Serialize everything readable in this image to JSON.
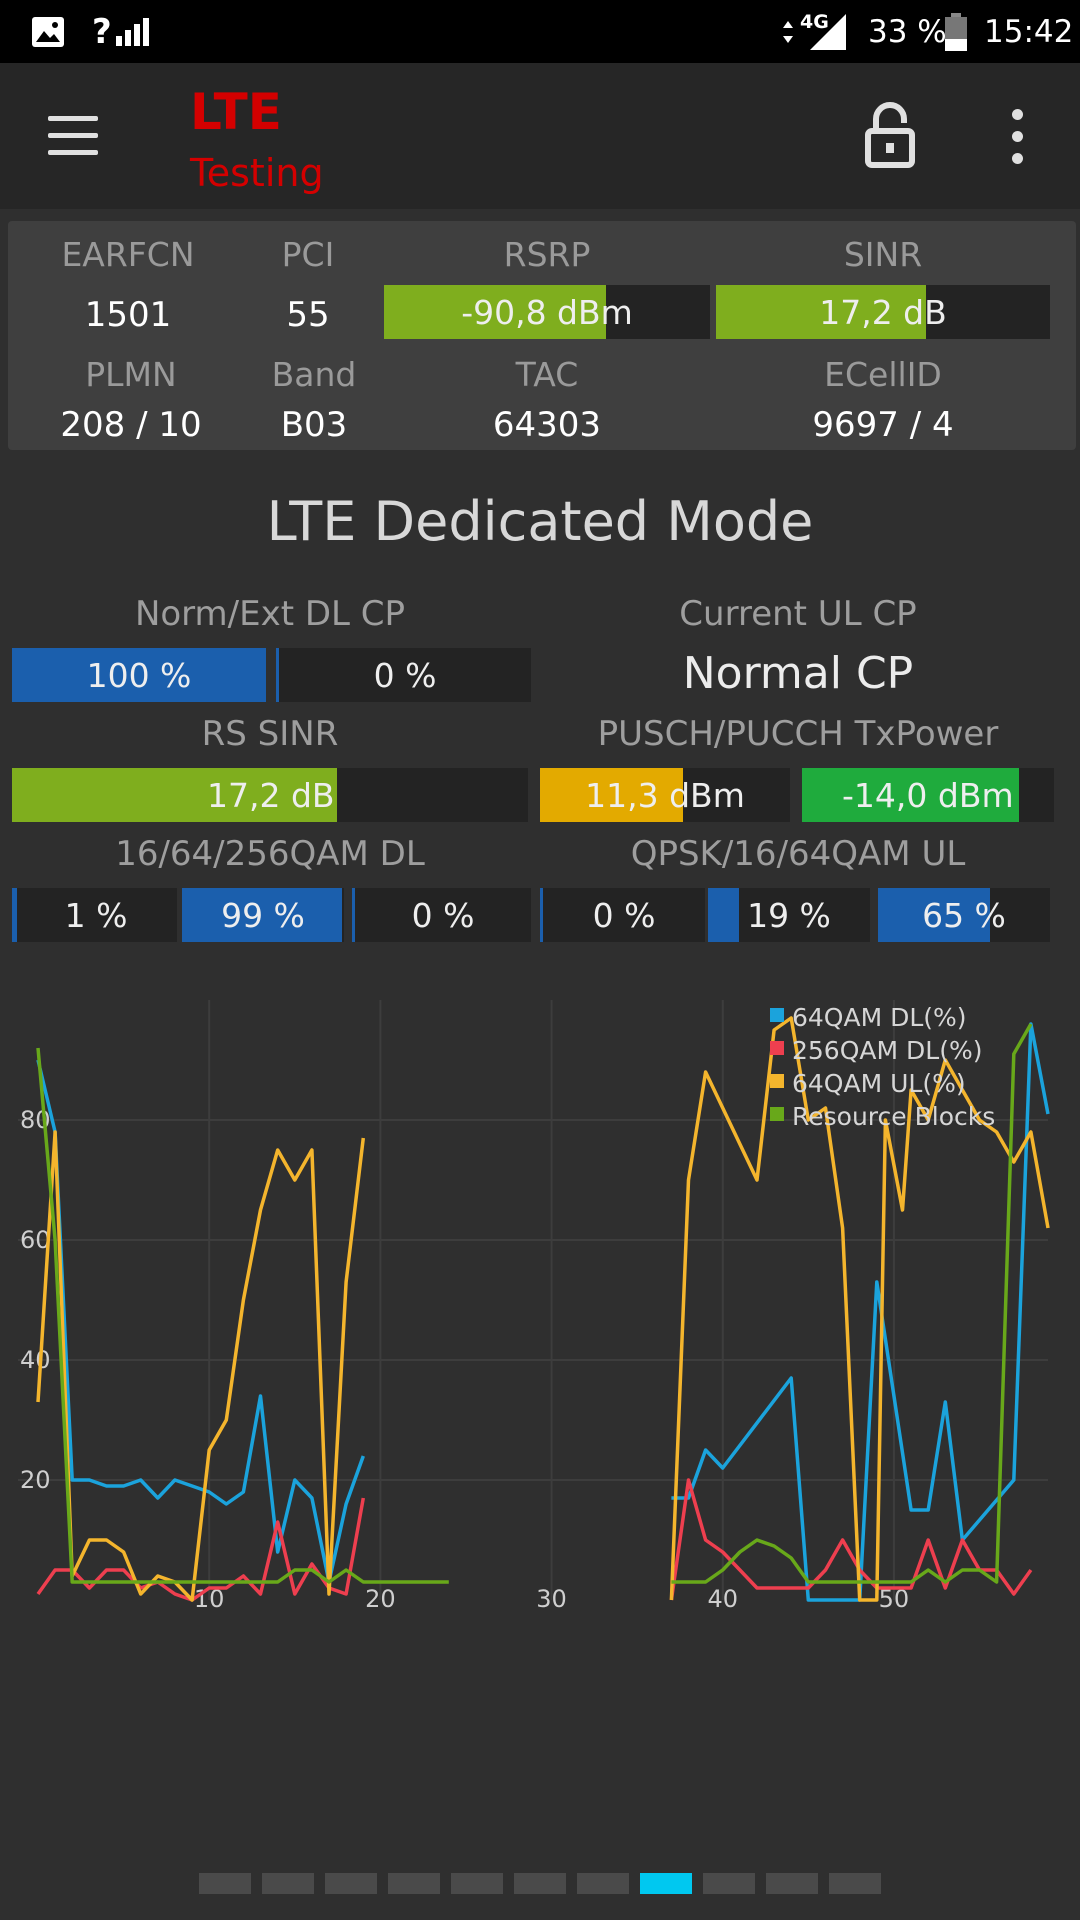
{
  "status_bar": {
    "signal_label": "?",
    "network": "4G",
    "battery": "33 %",
    "time": "15:42"
  },
  "app_bar": {
    "title": "LTE",
    "subtitle": "Testing"
  },
  "serving_cell": {
    "earfcn_label": "EARFCN",
    "earfcn": "1501",
    "pci_label": "PCI",
    "pci": "55",
    "rsrp_label": "RSRP",
    "rsrp": "-90,8 dBm",
    "rsrp_level": 0.68,
    "rsrp_color": "#7fae1e",
    "sinr_label": "SINR",
    "sinr": "17,2 dB",
    "sinr_level": 0.63,
    "sinr_color": "#7fae1e",
    "plmn_label": "PLMN",
    "plmn": "208 / 10",
    "band_label": "Band",
    "band": "B03",
    "tac_label": "TAC",
    "tac": "64303",
    "ecellid_label": "ECellID",
    "ecellid": "9697 / 4"
  },
  "dedicated": {
    "title": "LTE Dedicated Mode",
    "dl_cp_label": "Norm/Ext DL CP",
    "dl_cp_normal": "100 %",
    "dl_cp_normal_level": 1.0,
    "dl_cp_ext": "0 %",
    "dl_cp_ext_level": 0.0,
    "ul_cp_label": "Current UL CP",
    "ul_cp": "Normal CP",
    "rs_sinr_label": "RS SINR",
    "rs_sinr": "17,2 dB",
    "rs_sinr_level": 0.63,
    "txpower_label": "PUSCH/PUCCH TxPower",
    "pusch": "11,3 dBm",
    "pusch_level": 0.57,
    "pucch": "-14,0 dBm",
    "pucch_level": 0.86,
    "qam_dl_label": "16/64/256QAM DL",
    "qam_dl_16": "1 %",
    "qam_dl_16_level": 0.01,
    "qam_dl_64": "99 %",
    "qam_dl_64_level": 0.99,
    "qam_dl_256": "0 %",
    "qam_dl_256_level": 0.0,
    "qam_ul_label": "QPSK/16/64QAM UL",
    "qam_ul_qpsk": "0 %",
    "qam_ul_qpsk_level": 0.0,
    "qam_ul_16": "19 %",
    "qam_ul_16_level": 0.19,
    "qam_ul_64": "65 %",
    "qam_ul_64_level": 0.65,
    "colors": {
      "blue": "#1b5fad",
      "green_bar": "#7fae1e",
      "orange": "#e3aa00",
      "green": "#1fab3d"
    }
  },
  "chart_data": {
    "type": "line",
    "xlim": [
      0,
      59
    ],
    "ylim": [
      0,
      100
    ],
    "xticks": [
      10,
      20,
      30,
      40,
      50
    ],
    "yticks": [
      20,
      40,
      60,
      80
    ],
    "grid": true,
    "legend_position": "top-right",
    "series": [
      {
        "name": "64QAM DL(%)",
        "color": "#1ba3dc",
        "segments": [
          [
            [
              0,
              90
            ],
            [
              1,
              78
            ],
            [
              2,
              20
            ],
            [
              3,
              20
            ],
            [
              4,
              19
            ],
            [
              5,
              19
            ],
            [
              6,
              20
            ],
            [
              7,
              17
            ],
            [
              8,
              20
            ],
            [
              9,
              19
            ],
            [
              10,
              18
            ],
            [
              11,
              16
            ],
            [
              12,
              18
            ],
            [
              13,
              34
            ],
            [
              14,
              8
            ],
            [
              15,
              20
            ],
            [
              16,
              17
            ],
            [
              17,
              3
            ],
            [
              18,
              16
            ],
            [
              19,
              24
            ]
          ],
          [
            [
              37,
              17
            ],
            [
              38,
              17
            ],
            [
              39,
              25
            ],
            [
              40,
              22
            ],
            [
              44,
              37
            ],
            [
              45,
              0
            ],
            [
              48,
              0
            ],
            [
              49,
              53
            ],
            [
              51,
              15
            ],
            [
              52,
              15
            ],
            [
              53,
              33
            ],
            [
              54,
              10
            ],
            [
              57,
              20
            ],
            [
              58,
              96
            ],
            [
              59,
              81
            ]
          ]
        ]
      },
      {
        "name": "256QAM DL(%)",
        "color": "#ee3f4f",
        "segments": [
          [
            [
              0,
              1
            ],
            [
              1,
              5
            ],
            [
              2,
              5
            ],
            [
              3,
              2
            ],
            [
              4,
              5
            ],
            [
              5,
              5
            ],
            [
              6,
              2
            ],
            [
              7,
              3
            ],
            [
              8,
              1
            ],
            [
              9,
              0
            ],
            [
              10,
              2
            ],
            [
              11,
              2
            ],
            [
              12,
              4
            ],
            [
              13,
              1
            ],
            [
              14,
              13
            ],
            [
              15,
              1
            ],
            [
              16,
              6
            ],
            [
              17,
              2
            ],
            [
              18,
              1
            ],
            [
              19,
              17
            ]
          ],
          [
            [
              37,
              0
            ],
            [
              38,
              20
            ],
            [
              39,
              10
            ],
            [
              40,
              8
            ],
            [
              41,
              5
            ],
            [
              42,
              2
            ],
            [
              43,
              2
            ],
            [
              44,
              2
            ],
            [
              45,
              2
            ],
            [
              46,
              5
            ],
            [
              47,
              10
            ],
            [
              48,
              5
            ],
            [
              49,
              2
            ],
            [
              50,
              2
            ],
            [
              51,
              2
            ],
            [
              52,
              10
            ],
            [
              53,
              2
            ],
            [
              54,
              10
            ],
            [
              55,
              5
            ],
            [
              56,
              5
            ],
            [
              57,
              1
            ],
            [
              58,
              5
            ]
          ]
        ]
      },
      {
        "name": "64QAM UL(%)",
        "color": "#f4b52d",
        "segments": [
          [
            [
              0,
              33
            ],
            [
              1,
              78
            ],
            [
              2,
              4
            ],
            [
              3,
              10
            ],
            [
              4,
              10
            ],
            [
              5,
              8
            ],
            [
              6,
              1
            ],
            [
              7,
              4
            ],
            [
              8,
              3
            ],
            [
              9,
              0
            ],
            [
              10,
              25
            ],
            [
              11,
              30
            ],
            [
              12,
              50
            ],
            [
              13,
              65
            ],
            [
              14,
              75
            ],
            [
              15,
              70
            ],
            [
              16,
              75
            ],
            [
              17,
              1
            ],
            [
              18,
              53
            ],
            [
              19,
              77
            ]
          ],
          [
            [
              37,
              0
            ],
            [
              38,
              70
            ],
            [
              39,
              88
            ],
            [
              42,
              70
            ],
            [
              43,
              95
            ],
            [
              44,
              97
            ],
            [
              45,
              80
            ],
            [
              46,
              82
            ],
            [
              47,
              62
            ],
            [
              48,
              0
            ],
            [
              49,
              0
            ],
            [
              49.5,
              80
            ],
            [
              50.5,
              65
            ],
            [
              51,
              85
            ],
            [
              52,
              80
            ],
            [
              53,
              90
            ],
            [
              54,
              85
            ],
            [
              55,
              80
            ],
            [
              56,
              78
            ],
            [
              57,
              73
            ],
            [
              58,
              78
            ],
            [
              59,
              62
            ]
          ]
        ]
      },
      {
        "name": "Resource Blocks",
        "color": "#68a81a",
        "segments": [
          [
            [
              0,
              92
            ],
            [
              1,
              60
            ],
            [
              2,
              3
            ],
            [
              14,
              3
            ],
            [
              15,
              5
            ],
            [
              16,
              5
            ],
            [
              17,
              3
            ],
            [
              18,
              5
            ],
            [
              19,
              3
            ],
            [
              24,
              3
            ]
          ],
          [
            [
              37,
              3
            ],
            [
              38,
              3
            ],
            [
              39,
              3
            ],
            [
              40,
              5
            ],
            [
              41,
              8
            ],
            [
              42,
              10
            ],
            [
              43,
              9
            ],
            [
              44,
              7
            ],
            [
              45,
              3
            ],
            [
              46,
              3
            ],
            [
              47,
              3
            ],
            [
              48,
              3
            ],
            [
              49,
              3
            ],
            [
              50,
              3
            ],
            [
              51,
              3
            ],
            [
              52,
              5
            ],
            [
              53,
              3
            ],
            [
              54,
              5
            ],
            [
              55,
              5
            ],
            [
              56,
              3
            ],
            [
              57,
              91
            ],
            [
              58,
              96
            ]
          ]
        ]
      }
    ]
  },
  "pager": {
    "pages": 11,
    "active_index": 7
  }
}
